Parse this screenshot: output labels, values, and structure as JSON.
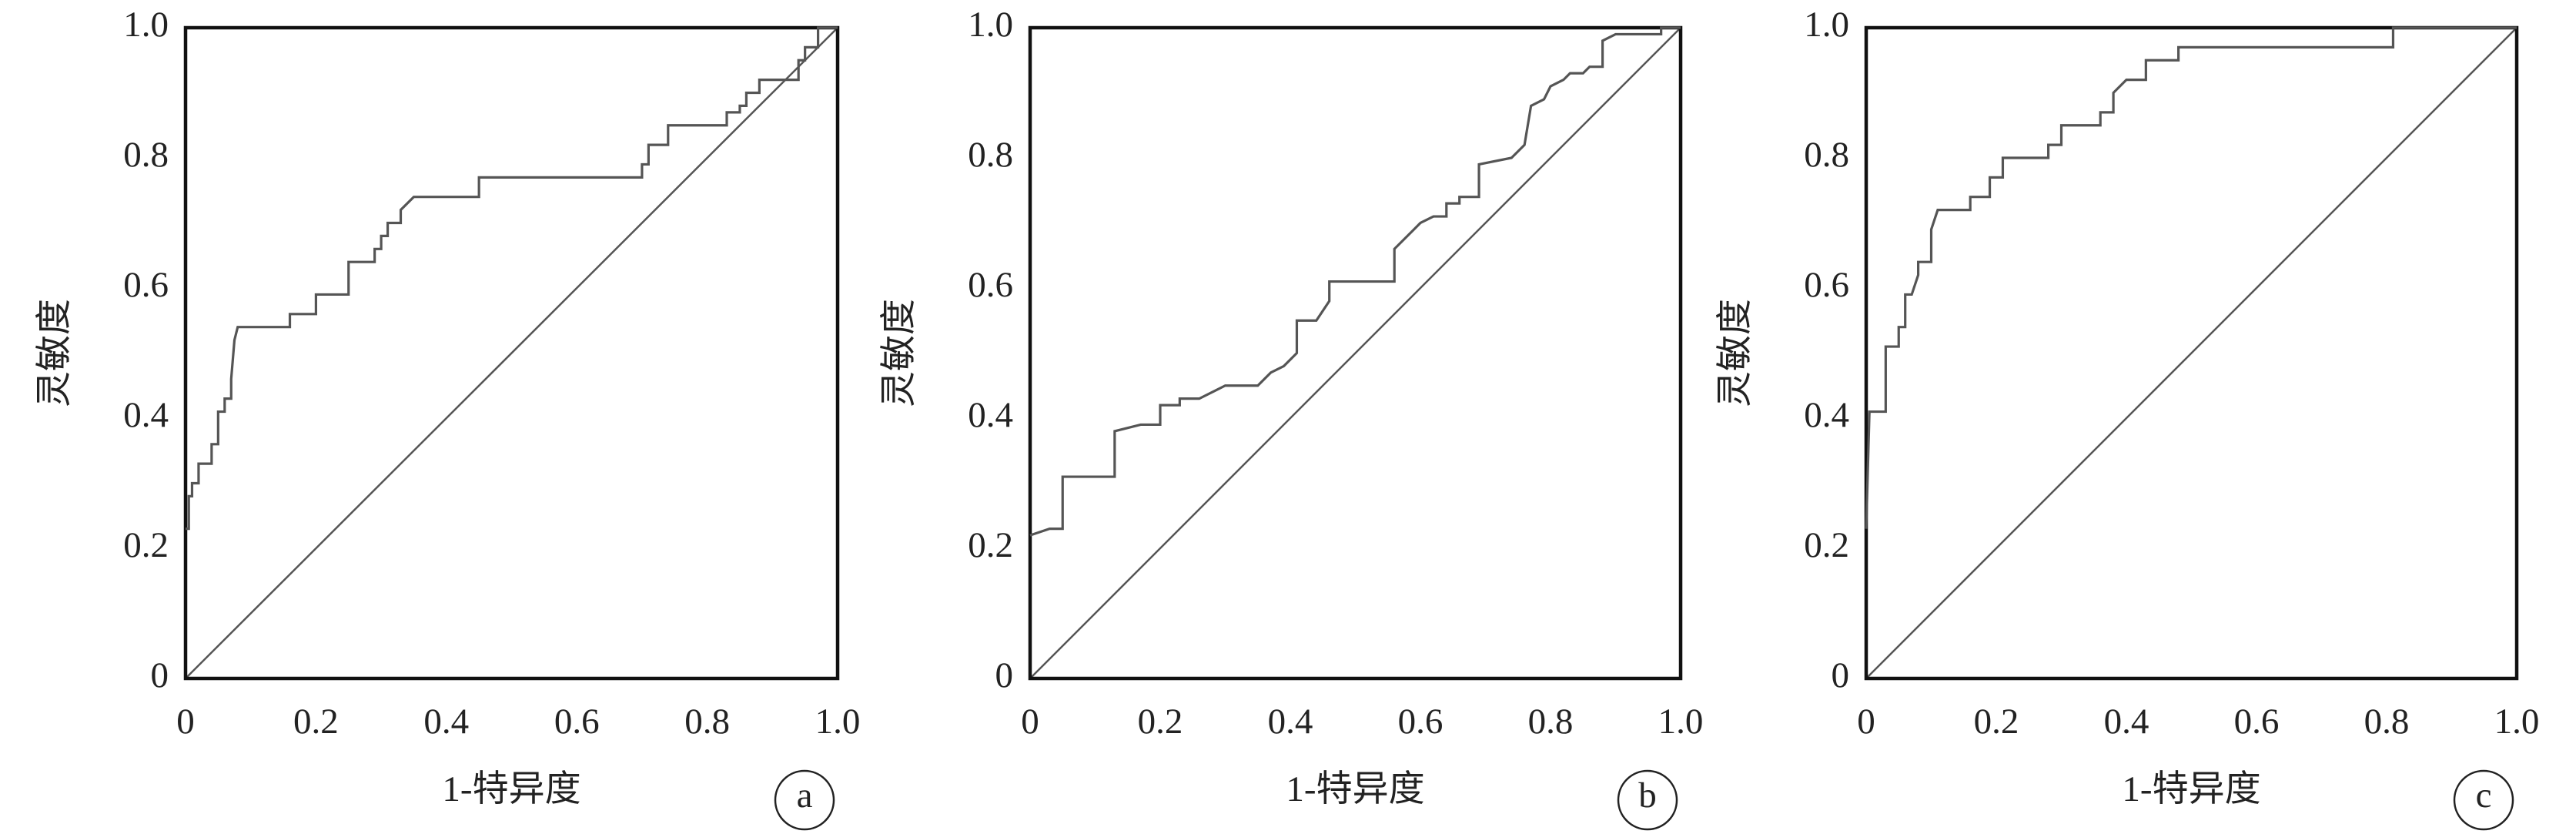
{
  "chart_data": [
    {
      "type": "line",
      "panel_label": "a",
      "x_label": "1-特异度",
      "y_label": "灵敏度",
      "x": [
        0,
        0.005,
        0.005,
        0.01,
        0.01,
        0.02,
        0.02,
        0.04,
        0.04,
        0.05,
        0.05,
        0.06,
        0.06,
        0.07,
        0.07,
        0.075,
        0.08,
        0.16,
        0.16,
        0.2,
        0.2,
        0.25,
        0.25,
        0.29,
        0.29,
        0.3,
        0.3,
        0.31,
        0.31,
        0.33,
        0.33,
        0.35,
        0.45,
        0.45,
        0.7,
        0.7,
        0.71,
        0.71,
        0.74,
        0.74,
        0.83,
        0.83,
        0.85,
        0.85,
        0.86,
        0.86,
        0.88,
        0.88,
        0.94,
        0.94,
        0.95,
        0.95,
        0.97,
        0.97,
        1
      ],
      "series": [
        {
          "color": "#555555",
          "values": [
            0.23,
            0.23,
            0.28,
            0.28,
            0.3,
            0.3,
            0.33,
            0.33,
            0.36,
            0.36,
            0.41,
            0.41,
            0.43,
            0.43,
            0.46,
            0.52,
            0.54,
            0.54,
            0.56,
            0.56,
            0.59,
            0.59,
            0.64,
            0.64,
            0.66,
            0.66,
            0.68,
            0.68,
            0.7,
            0.7,
            0.72,
            0.74,
            0.74,
            0.77,
            0.77,
            0.79,
            0.79,
            0.82,
            0.82,
            0.85,
            0.85,
            0.87,
            0.87,
            0.88,
            0.88,
            0.9,
            0.9,
            0.92,
            0.92,
            0.95,
            0.95,
            0.97,
            0.97,
            1,
            1
          ]
        }
      ],
      "xlim": [
        0,
        1
      ],
      "ylim": [
        0,
        1
      ],
      "xticks": [
        0,
        0.2,
        0.4,
        0.6,
        0.8,
        {
          "value": 1,
          "label": "1.0"
        }
      ],
      "yticks": [
        0,
        0.2,
        0.4,
        0.6,
        0.8,
        {
          "value": 1,
          "label": "1.0"
        }
      ],
      "diagonal": true,
      "grid": false
    },
    {
      "type": "line",
      "panel_label": "b",
      "x_label": "1-特异度",
      "y_label": "灵敏度",
      "x": [
        0,
        0.03,
        0.05,
        0.05,
        0.13,
        0.13,
        0.17,
        0.2,
        0.2,
        0.23,
        0.23,
        0.26,
        0.3,
        0.35,
        0.37,
        0.39,
        0.41,
        0.41,
        0.44,
        0.46,
        0.46,
        0.56,
        0.56,
        0.59,
        0.6,
        0.62,
        0.64,
        0.64,
        0.66,
        0.66,
        0.69,
        0.69,
        0.74,
        0.76,
        0.77,
        0.79,
        0.8,
        0.82,
        0.83,
        0.85,
        0.86,
        0.88,
        0.88,
        0.9,
        0.97,
        0.97,
        1
      ],
      "series": [
        {
          "color": "#555555",
          "values": [
            0.22,
            0.23,
            0.23,
            0.31,
            0.31,
            0.38,
            0.39,
            0.39,
            0.42,
            0.42,
            0.43,
            0.43,
            0.45,
            0.45,
            0.47,
            0.48,
            0.5,
            0.55,
            0.55,
            0.58,
            0.61,
            0.61,
            0.66,
            0.69,
            0.7,
            0.71,
            0.71,
            0.73,
            0.73,
            0.74,
            0.74,
            0.79,
            0.8,
            0.82,
            0.88,
            0.89,
            0.91,
            0.92,
            0.93,
            0.93,
            0.94,
            0.94,
            0.98,
            0.99,
            0.99,
            1,
            1
          ]
        }
      ],
      "xlim": [
        0,
        1
      ],
      "ylim": [
        0,
        1
      ],
      "xticks": [
        0,
        0.2,
        0.4,
        0.6,
        0.8,
        {
          "value": 1,
          "label": "1.0"
        }
      ],
      "yticks": [
        0,
        0.2,
        0.4,
        0.6,
        0.8,
        {
          "value": 1,
          "label": "1.0"
        }
      ],
      "diagonal": true,
      "grid": false
    },
    {
      "type": "line",
      "panel_label": "c",
      "x_label": "1-特异度",
      "y_label": "灵敏度",
      "x": [
        0,
        0.005,
        0.03,
        0.03,
        0.05,
        0.05,
        0.06,
        0.06,
        0.07,
        0.08,
        0.08,
        0.1,
        0.1,
        0.11,
        0.16,
        0.16,
        0.19,
        0.19,
        0.21,
        0.21,
        0.28,
        0.28,
        0.3,
        0.3,
        0.36,
        0.36,
        0.38,
        0.38,
        0.4,
        0.43,
        0.43,
        0.48,
        0.48,
        0.81,
        0.81,
        1
      ],
      "series": [
        {
          "color": "#555555",
          "values": [
            0.23,
            0.41,
            0.41,
            0.51,
            0.51,
            0.54,
            0.54,
            0.59,
            0.59,
            0.62,
            0.64,
            0.64,
            0.69,
            0.72,
            0.72,
            0.74,
            0.74,
            0.77,
            0.77,
            0.8,
            0.8,
            0.82,
            0.82,
            0.85,
            0.85,
            0.87,
            0.87,
            0.9,
            0.92,
            0.92,
            0.95,
            0.95,
            0.97,
            0.97,
            1,
            1
          ]
        }
      ],
      "xlim": [
        0,
        1
      ],
      "ylim": [
        0,
        1
      ],
      "xticks": [
        0,
        0.2,
        0.4,
        0.6,
        0.8,
        {
          "value": 1,
          "label": "1.0"
        }
      ],
      "yticks": [
        0,
        0.2,
        0.4,
        0.6,
        0.8,
        {
          "value": 1,
          "label": "1.0"
        }
      ],
      "diagonal": true,
      "grid": false
    }
  ]
}
